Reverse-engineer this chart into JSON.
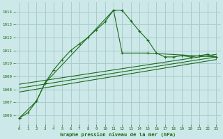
{
  "title": "Graphe pression niveau de la mer (hPa)",
  "background_color": "#cce8e8",
  "grid_color": "#aacccc",
  "line_color": "#1a6b1a",
  "xlim": [
    -0.5,
    23.5
  ],
  "ylim": [
    1005.3,
    1014.7
  ],
  "yticks": [
    1006,
    1007,
    1008,
    1009,
    1010,
    1011,
    1012,
    1013,
    1014
  ],
  "xticks": [
    0,
    1,
    2,
    3,
    4,
    5,
    6,
    7,
    8,
    9,
    10,
    11,
    12,
    13,
    14,
    15,
    16,
    17,
    18,
    19,
    20,
    21,
    22,
    23
  ],
  "line1_x": [
    0,
    1,
    2,
    3,
    4,
    5,
    6,
    7,
    8,
    9,
    10,
    11,
    12,
    13,
    14,
    15,
    16,
    17,
    18,
    19,
    20,
    21,
    22,
    23
  ],
  "line1_y": [
    1005.8,
    1006.2,
    1007.1,
    1008.5,
    1009.5,
    1010.3,
    1011.0,
    1011.5,
    1012.0,
    1012.6,
    1013.2,
    1014.1,
    1014.1,
    1013.3,
    1012.5,
    1011.8,
    1010.8,
    1010.5,
    1010.5,
    1010.6,
    1010.5,
    1010.6,
    1010.7,
    1010.5
  ],
  "line2_x": [
    0,
    2,
    3,
    11,
    12,
    15,
    23
  ],
  "line2_y": [
    1005.8,
    1007.1,
    1008.5,
    1014.1,
    1010.8,
    1010.8,
    1010.5
  ],
  "line3_x": [
    0,
    23
  ],
  "line3_y": [
    1007.8,
    1010.3
  ],
  "line4_x": [
    0,
    23
  ],
  "line4_y": [
    1008.1,
    1010.5
  ],
  "line5_x": [
    0,
    23
  ],
  "line5_y": [
    1008.4,
    1010.7
  ]
}
